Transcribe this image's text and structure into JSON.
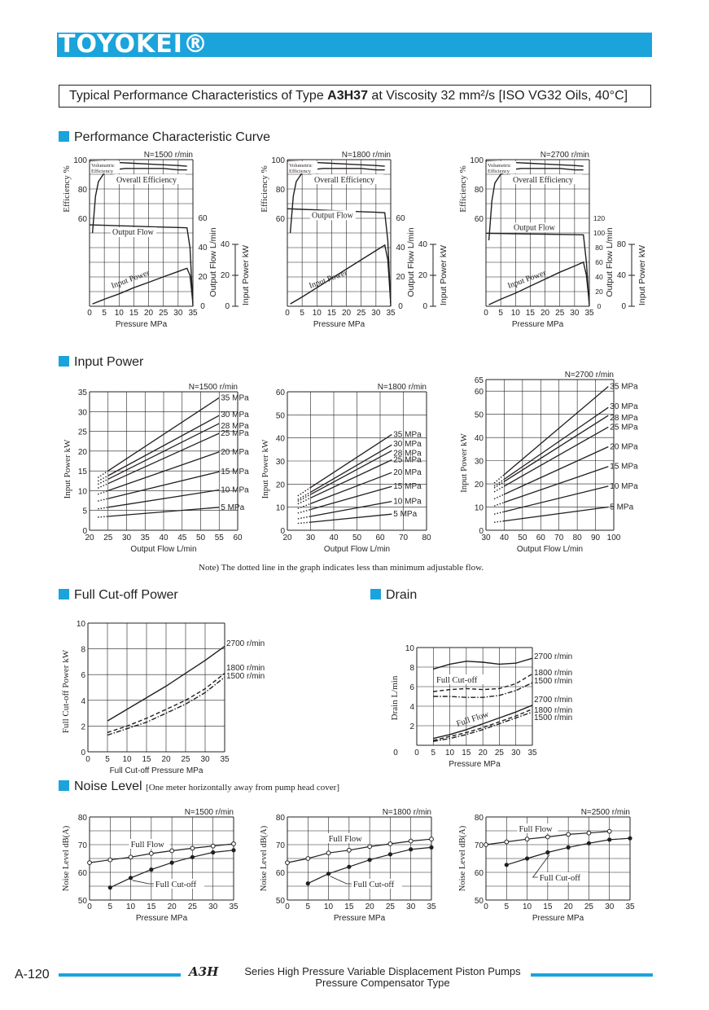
{
  "header": {
    "brand": "TOYOKEI®",
    "title_prefix": "Typical Performance Characteristics of Type ",
    "title_model": "A3H37",
    "title_suffix": " at Viscosity 32 mm²/s [ISO VG32 Oils, 40°C]"
  },
  "sections": {
    "perf": "Performance Characteristic Curve",
    "input_power": "Input Power",
    "cutoff": "Full Cut-off Power",
    "drain": "Drain",
    "noise": "Noise Level",
    "noise_note": "[One meter horizontally away from pump head cover]"
  },
  "note": "Note) The dotted line in the graph indicates less than minimum adjustable flow.",
  "footer": {
    "page": "A-120",
    "logo": "A3H",
    "line1": "Series High Pressure Variable Displacement Piston Pumps",
    "line2": "Pressure Compensator Type"
  },
  "colors": {
    "accent": "#1ba3dc",
    "ink": "#231f20"
  },
  "chart_data": [
    {
      "type": "line",
      "title": "N=1500 r/min",
      "xlabel": "Pressure   MPa",
      "ylabel_left": "Efficiency   %",
      "ylabel_flow": "Output Flow   L/min",
      "ylabel_power": "Input Power   kW",
      "xlim": [
        0,
        35
      ],
      "eff_ticks": [
        60,
        80,
        100
      ],
      "flow_ticks": [
        0,
        20,
        40,
        60
      ],
      "power_ticks": [
        0,
        20,
        40
      ],
      "labels": {
        "vol_eff_1": "Volumetric",
        "vol_eff_2": "Efficiency",
        "overall": "Overall Efficiency",
        "flow": "Output Flow",
        "power": "Input Power"
      },
      "series": [
        {
          "name": "Volumetric Efficiency",
          "x": [
            0,
            5,
            10,
            15,
            20,
            25,
            30,
            33
          ],
          "y": [
            99,
            98.5,
            98,
            97.5,
            97,
            96.5,
            96,
            95.5
          ]
        },
        {
          "name": "Overall Efficiency",
          "x": [
            1,
            2,
            3,
            5,
            8,
            12,
            18,
            25,
            30,
            33
          ],
          "y": [
            50,
            75,
            85,
            91,
            93,
            94,
            94,
            94,
            93,
            93
          ]
        },
        {
          "name": "Output Flow",
          "x": [
            0,
            5,
            10,
            15,
            20,
            25,
            30,
            33,
            34,
            35
          ],
          "y": [
            55.5,
            55.2,
            54.9,
            54.6,
            54.3,
            54,
            53.7,
            53.5,
            40,
            0
          ]
        },
        {
          "name": "Input Power",
          "x": [
            1,
            5,
            10,
            15,
            20,
            25,
            30,
            33,
            34,
            35
          ],
          "y": [
            1.5,
            4.5,
            8,
            12,
            15.5,
            19,
            22.5,
            24.5,
            20,
            2
          ]
        }
      ]
    },
    {
      "type": "line",
      "title": "N=1800 r/min",
      "xlabel": "Pressure   MPa",
      "ylabel_left": "Efficiency   %",
      "ylabel_flow": "Output Flow   L/min",
      "ylabel_power": "Input Power   kW",
      "xlim": [
        0,
        35
      ],
      "eff_ticks": [
        60,
        80,
        100
      ],
      "flow_ticks": [
        0,
        20,
        40,
        60
      ],
      "power_ticks": [
        0,
        20,
        40
      ],
      "labels": {
        "vol_eff_1": "Volumetric",
        "vol_eff_2": "Efficiency",
        "overall": "Overall Efficiency",
        "flow": "Output Flow",
        "power": "Input Power"
      },
      "series": [
        {
          "name": "Volumetric Efficiency",
          "x": [
            0,
            5,
            10,
            15,
            20,
            25,
            30,
            33
          ],
          "y": [
            99,
            98.5,
            98,
            97.5,
            97,
            96.5,
            96,
            95.5
          ]
        },
        {
          "name": "Overall Efficiency",
          "x": [
            1,
            2,
            3,
            5,
            8,
            12,
            18,
            25,
            30,
            33
          ],
          "y": [
            50,
            75,
            85,
            91,
            93,
            94,
            94,
            94,
            93,
            93
          ]
        },
        {
          "name": "Output Flow",
          "x": [
            0,
            5,
            10,
            15,
            20,
            25,
            30,
            33,
            34,
            35
          ],
          "y": [
            66.5,
            66.1,
            65.7,
            65.3,
            64.9,
            64.5,
            64.1,
            63.8,
            45,
            0
          ]
        },
        {
          "name": "Input Power",
          "x": [
            1,
            5,
            10,
            15,
            20,
            25,
            30,
            33,
            34,
            35
          ],
          "y": [
            1.5,
            6,
            12,
            18,
            24,
            30,
            36,
            39.5,
            30,
            2
          ]
        }
      ]
    },
    {
      "type": "line",
      "title": "N=2700 r/min",
      "xlabel": "Pressure   MPa",
      "ylabel_left": "Efficiency   %",
      "ylabel_flow": "Output Flow   L/min",
      "ylabel_power": "Input Power   kW",
      "xlim": [
        0,
        35
      ],
      "eff_ticks": [
        60,
        80,
        100
      ],
      "flow_ticks": [
        0,
        20,
        40,
        60,
        80,
        100,
        120
      ],
      "power_ticks": [
        0,
        40,
        80
      ],
      "labels": {
        "vol_eff_1": "Volumetric",
        "vol_eff_2": "Efficiency",
        "overall": "Overall Efficiency",
        "flow": "Output Flow",
        "power": "Input Power"
      },
      "series": [
        {
          "name": "Volumetric Efficiency",
          "x": [
            0,
            5,
            10,
            15,
            20,
            25,
            30,
            33
          ],
          "y": [
            99,
            98.5,
            98,
            97.5,
            97,
            96.5,
            96,
            95.5
          ]
        },
        {
          "name": "Overall Efficiency",
          "x": [
            1,
            2,
            3,
            5,
            8,
            12,
            18,
            25,
            30,
            33
          ],
          "y": [
            45,
            72,
            84,
            90,
            93,
            94,
            94,
            94,
            93,
            93
          ]
        },
        {
          "name": "Output Flow",
          "x": [
            0,
            5,
            10,
            15,
            20,
            25,
            30,
            33,
            34,
            35
          ],
          "y": [
            99.5,
            99.2,
            98.9,
            98.6,
            98.3,
            98,
            97.7,
            97.5,
            60,
            0
          ]
        },
        {
          "name": "Input Power",
          "x": [
            1,
            5,
            10,
            15,
            20,
            25,
            30,
            33,
            34,
            35
          ],
          "y": [
            2,
            9,
            17,
            26,
            35,
            44,
            52,
            57,
            40,
            3
          ]
        }
      ]
    },
    {
      "type": "line",
      "title": "N=1500 r/min",
      "xlabel": "Output Flow   L/min",
      "ylabel": "Input Power   kW",
      "xlim": [
        20,
        60
      ],
      "ylim": [
        0,
        35
      ],
      "xticks": [
        20,
        25,
        30,
        35,
        40,
        45,
        50,
        55,
        60
      ],
      "yticks": [
        0,
        5,
        10,
        15,
        20,
        25,
        30,
        35
      ],
      "solid_from": 25,
      "x_end": 55,
      "series": [
        {
          "name": "35 MPa",
          "y0": 15.0,
          "y1": 33.5
        },
        {
          "name": "30 MPa",
          "y0": 13.8,
          "y1": 29.0
        },
        {
          "name": "28 MPa",
          "y0": 12.9,
          "y1": 27.0
        },
        {
          "name": "25 MPa",
          "y0": 11.8,
          "y1": 24.5
        },
        {
          "name": "20 MPa",
          "y0": 10.0,
          "y1": 19.8
        },
        {
          "name": "15 MPa",
          "y0": 8.0,
          "y1": 14.8
        },
        {
          "name": "10 MPa",
          "y0": 5.8,
          "y1": 10.2
        },
        {
          "name": "5 MPa",
          "y0": 3.5,
          "y1": 5.8
        }
      ]
    },
    {
      "type": "line",
      "title": "N=1800 r/min",
      "xlabel": "Output Flow   L/min",
      "ylabel": "Input Power   kW",
      "xlim": [
        20,
        80
      ],
      "ylim": [
        0,
        60
      ],
      "xticks": [
        20,
        30,
        40,
        50,
        60,
        70,
        80
      ],
      "yticks": [
        0,
        10,
        20,
        30,
        40,
        50,
        60
      ],
      "solid_from": 30,
      "x_end": 65,
      "series": [
        {
          "name": "35 MPa",
          "y0": 18.5,
          "y1": 41.5
        },
        {
          "name": "30 MPa",
          "y0": 16.5,
          "y1": 37.0
        },
        {
          "name": "28 MPa",
          "y0": 15.5,
          "y1": 34.5
        },
        {
          "name": "25 MPa",
          "y0": 14.0,
          "y1": 30.5
        },
        {
          "name": "20 MPa",
          "y0": 11.5,
          "y1": 25.0
        },
        {
          "name": "15 MPa",
          "y0": 9.0,
          "y1": 19.0
        },
        {
          "name": "10 MPa",
          "y0": 6.0,
          "y1": 12.5
        },
        {
          "name": "5 MPa",
          "y0": 3.5,
          "y1": 7.0
        }
      ]
    },
    {
      "type": "line",
      "title": "N=2700 r/min",
      "xlabel": "Output Flow   L/min",
      "ylabel": "Input Power   kW",
      "xlim": [
        30,
        100
      ],
      "ylim": [
        0,
        65
      ],
      "xticks": [
        30,
        40,
        50,
        60,
        70,
        80,
        90,
        100
      ],
      "yticks": [
        0,
        10,
        20,
        30,
        40,
        50,
        60,
        65
      ],
      "solid_from": 40,
      "x_end": 97,
      "series": [
        {
          "name": "35 MPa",
          "y0": 24.0,
          "y1": 62.0
        },
        {
          "name": "30 MPa",
          "y0": 22.0,
          "y1": 53.0
        },
        {
          "name": "28 MPa",
          "y0": 21.0,
          "y1": 49.5
        },
        {
          "name": "25 MPa",
          "y0": 19.0,
          "y1": 44.5
        },
        {
          "name": "20 MPa",
          "y0": 15.5,
          "y1": 36.0
        },
        {
          "name": "15 MPa",
          "y0": 12.0,
          "y1": 27.5
        },
        {
          "name": "10 MPa",
          "y0": 8.0,
          "y1": 19.0
        },
        {
          "name": "5 MPa",
          "y0": 4.0,
          "y1": 10.0
        }
      ]
    },
    {
      "type": "line",
      "xlabel": "Full Cut-off Pressure   MPa",
      "ylabel": "Full Cut-off Power   kW",
      "xlim": [
        0,
        35
      ],
      "ylim": [
        0,
        10
      ],
      "xticks": [
        0,
        5,
        10,
        15,
        20,
        25,
        30,
        35
      ],
      "yticks": [
        2,
        4,
        6,
        8,
        10
      ],
      "series": [
        {
          "name": "2700 r/min",
          "style": "solid",
          "x": [
            5,
            10,
            15,
            20,
            25,
            30,
            35
          ],
          "y": [
            2.4,
            3.3,
            4.2,
            5.1,
            6.1,
            7.1,
            8.2
          ]
        },
        {
          "name": "1800 r/min",
          "style": "dash",
          "x": [
            5,
            10,
            15,
            20,
            25,
            30,
            35
          ],
          "y": [
            1.5,
            2.0,
            2.6,
            3.3,
            4.0,
            4.9,
            6.1
          ]
        },
        {
          "name": "1500 r/min",
          "style": "dashdot",
          "x": [
            5,
            10,
            15,
            20,
            25,
            30,
            35
          ],
          "y": [
            1.3,
            1.8,
            2.3,
            3.0,
            3.7,
            4.6,
            5.8
          ]
        }
      ]
    },
    {
      "type": "line",
      "xlabel": "Pressure   MPa",
      "ylabel": "Drain   L/min",
      "xlim": [
        0,
        35
      ],
      "ylim": [
        0,
        10
      ],
      "xticks": [
        0,
        5,
        10,
        15,
        20,
        25,
        30,
        35
      ],
      "yticks": [
        2,
        4,
        6,
        8,
        10
      ],
      "labels": {
        "cutoff": "Full Cut-off",
        "fullflow": "Full Flow"
      },
      "series": [
        {
          "name": "2700 r/min",
          "group": "cutoff",
          "style": "solid",
          "x": [
            5,
            10,
            15,
            20,
            25,
            30,
            35
          ],
          "y": [
            7.8,
            8.3,
            8.6,
            8.5,
            8.3,
            8.4,
            8.9
          ]
        },
        {
          "name": "1800 r/min",
          "group": "cutoff",
          "style": "dash",
          "x": [
            5,
            10,
            15,
            20,
            25,
            30,
            35
          ],
          "y": [
            5.5,
            5.7,
            5.8,
            5.7,
            5.8,
            6.3,
            7.3
          ]
        },
        {
          "name": "1500 r/min",
          "group": "cutoff",
          "style": "dashdot",
          "x": [
            5,
            10,
            15,
            20,
            25,
            30,
            35
          ],
          "y": [
            5.0,
            5.0,
            4.9,
            4.9,
            5.1,
            5.6,
            6.4
          ]
        },
        {
          "name": "2700 r/min",
          "group": "fullflow",
          "style": "solid",
          "x": [
            5,
            10,
            15,
            20,
            25,
            30,
            35
          ],
          "y": [
            0.7,
            1.1,
            1.6,
            2.2,
            2.8,
            3.4,
            4.1
          ]
        },
        {
          "name": "1800 r/min",
          "group": "fullflow",
          "style": "dash",
          "x": [
            5,
            10,
            15,
            20,
            25,
            30,
            35
          ],
          "y": [
            0.5,
            0.9,
            1.3,
            1.8,
            2.4,
            3.0,
            3.7
          ]
        },
        {
          "name": "1500 r/min",
          "group": "fullflow",
          "style": "dashdot",
          "x": [
            5,
            10,
            15,
            20,
            25,
            30,
            35
          ],
          "y": [
            0.4,
            0.7,
            1.1,
            1.6,
            2.2,
            2.8,
            3.4
          ]
        }
      ]
    },
    {
      "type": "line",
      "title": "N=1500 r/min",
      "xlabel": "Pressure   MPa",
      "ylabel": "Noise Level   dB(A)",
      "xlim": [
        0,
        35
      ],
      "ylim": [
        50,
        80
      ],
      "xticks": [
        0,
        5,
        10,
        15,
        20,
        25,
        30,
        35
      ],
      "yticks": [
        50,
        60,
        70,
        80
      ],
      "series": [
        {
          "name": "Full Flow",
          "marker": "open",
          "x": [
            0,
            5,
            10,
            15,
            20,
            25,
            30,
            35
          ],
          "y": [
            63.5,
            64.5,
            65.5,
            66.8,
            67.8,
            68.7,
            69.5,
            70.3
          ]
        },
        {
          "name": "Full Cut-off",
          "marker": "filled",
          "x": [
            5,
            10,
            15,
            20,
            25,
            30,
            35
          ],
          "y": [
            54.5,
            58,
            61,
            63.5,
            65.5,
            67.2,
            68
          ]
        }
      ]
    },
    {
      "type": "line",
      "title": "N=1800 r/min",
      "xlabel": "Pressure   MPa",
      "ylabel": "Noise Level   dB(A)",
      "xlim": [
        0,
        35
      ],
      "ylim": [
        50,
        80
      ],
      "xticks": [
        0,
        5,
        10,
        15,
        20,
        25,
        30,
        35
      ],
      "yticks": [
        50,
        60,
        70,
        80
      ],
      "series": [
        {
          "name": "Full Flow",
          "marker": "open",
          "x": [
            0,
            5,
            10,
            15,
            20,
            25,
            30,
            35
          ],
          "y": [
            63.5,
            65,
            67,
            68,
            69.3,
            70.3,
            71.3,
            72
          ]
        },
        {
          "name": "Full Cut-off",
          "marker": "filled",
          "x": [
            5,
            10,
            15,
            20,
            25,
            30,
            35
          ],
          "y": [
            56,
            59.5,
            62,
            64.5,
            66.5,
            68.3,
            69
          ]
        }
      ]
    },
    {
      "type": "line",
      "title": "N=2500 r/min",
      "xlabel": "Pressure   MPa",
      "ylabel": "Noise Level   dB(A)",
      "xlim": [
        0,
        35
      ],
      "ylim": [
        50,
        80
      ],
      "xticks": [
        0,
        5,
        10,
        15,
        20,
        25,
        30,
        35
      ],
      "yticks": [
        50,
        60,
        70,
        80
      ],
      "series": [
        {
          "name": "Full Flow",
          "marker": "open",
          "x": [
            0,
            5,
            10,
            15,
            20,
            25,
            30
          ],
          "y": [
            70,
            71,
            72,
            72.8,
            73.7,
            74.2,
            74.8
          ]
        },
        {
          "name": "Full Cut-off",
          "marker": "filled",
          "x": [
            5,
            10,
            15,
            20,
            25,
            30,
            35
          ],
          "y": [
            62.7,
            65,
            67.2,
            69,
            70.5,
            71.8,
            72.3
          ]
        }
      ]
    }
  ]
}
